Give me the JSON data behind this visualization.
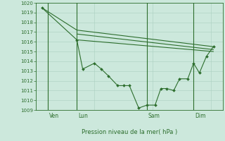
{
  "bg_color": "#cce8dc",
  "grid_color": "#aad0c0",
  "line_color": "#2d6e2d",
  "marker_color": "#2d6e2d",
  "xlabel": "Pression niveau de la mer( hPa )",
  "ylim": [
    1009,
    1020
  ],
  "yticks": [
    1009,
    1010,
    1011,
    1012,
    1013,
    1014,
    1015,
    1016,
    1017,
    1018,
    1019,
    1020
  ],
  "xlim": [
    0,
    16
  ],
  "day_labels": [
    "Ven",
    "Lun",
    "Sam",
    "Dim"
  ],
  "day_positions": [
    1.0,
    3.5,
    9.5,
    13.5
  ],
  "line1_start_x": 0.5,
  "line1": {
    "x": [
      0.5,
      3.5,
      4.0,
      5.0,
      5.6,
      6.2,
      7.0,
      7.5,
      8.0,
      8.8,
      9.5,
      10.2,
      10.7,
      11.2,
      11.8,
      12.3,
      13.0,
      13.5,
      14.0,
      14.6,
      15.2
    ],
    "y": [
      1019.5,
      1016.2,
      1013.2,
      1013.8,
      1013.2,
      1012.5,
      1011.5,
      1011.5,
      1011.5,
      1009.2,
      1009.5,
      1009.5,
      1011.2,
      1011.2,
      1011.0,
      1012.2,
      1012.2,
      1013.8,
      1012.8,
      1014.5,
      1015.5
    ]
  },
  "line2": {
    "x": [
      0.5,
      3.5,
      15.2
    ],
    "y": [
      1019.5,
      1017.2,
      1015.5
    ]
  },
  "line3": {
    "x": [
      3.5,
      15.2
    ],
    "y": [
      1016.8,
      1015.2
    ]
  },
  "line4": {
    "x": [
      3.5,
      15.2
    ],
    "y": [
      1016.2,
      1015.0
    ]
  }
}
